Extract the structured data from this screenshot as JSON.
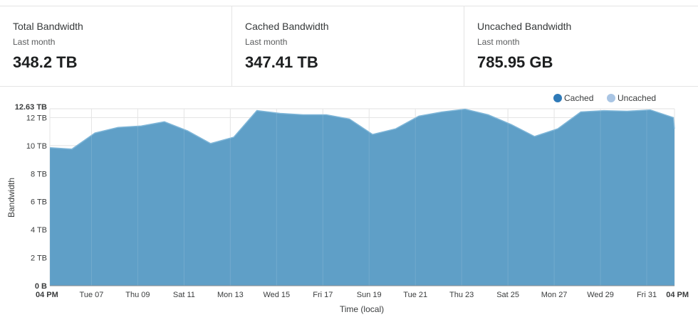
{
  "stats": [
    {
      "title": "Total Bandwidth",
      "period": "Last month",
      "value": "348.2 TB"
    },
    {
      "title": "Cached Bandwidth",
      "period": "Last month",
      "value": "347.41 TB"
    },
    {
      "title": "Uncached Bandwidth",
      "period": "Last month",
      "value": "785.95 GB"
    }
  ],
  "chart_data": {
    "type": "area",
    "xlabel": "Time (local)",
    "ylabel": "Bandwidth",
    "ylim": [
      0,
      12.63
    ],
    "y_unit": "TB",
    "y_ticks": [
      0,
      2,
      4,
      6,
      8,
      10,
      12,
      12.63
    ],
    "y_tick_labels": [
      "0 B",
      "2 TB",
      "4 TB",
      "6 TB",
      "8 TB",
      "10 TB",
      "12 TB",
      "12.63 TB"
    ],
    "x_tick_labels": [
      "04 PM",
      "Tue 07",
      "Thu 09",
      "Sat 11",
      "Mon 13",
      "Wed 15",
      "Fri 17",
      "Sun 19",
      "Tue 21",
      "Thu 23",
      "Sat 25",
      "Mon 27",
      "Wed 29",
      "Fri 31",
      "04 PM"
    ],
    "x_tick_days": [
      0,
      1.8,
      3.8,
      5.8,
      7.8,
      9.8,
      11.8,
      13.8,
      15.8,
      17.8,
      19.8,
      21.8,
      23.8,
      25.8,
      27
    ],
    "x_tick_bold": [
      true,
      false,
      false,
      false,
      false,
      false,
      false,
      false,
      false,
      false,
      false,
      false,
      false,
      false,
      true
    ],
    "x_range": [
      0,
      27
    ],
    "grid": true,
    "legend_position": "top-right",
    "series": [
      {
        "name": "Cached",
        "color": "#2f7ab8",
        "x": [
          0,
          0.95,
          1.95,
          2.95,
          3.95,
          4.95,
          5.95,
          6.95,
          7.95,
          8.95,
          9.95,
          10.95,
          11.95,
          12.95,
          13.95,
          14.95,
          15.95,
          16.95,
          17.95,
          18.95,
          19.95,
          20.95,
          21.95,
          22.95,
          23.95,
          24.95,
          25.95,
          26.95,
          27
        ],
        "values": [
          9.85,
          9.75,
          10.9,
          11.3,
          11.4,
          11.7,
          11.05,
          10.15,
          10.6,
          12.5,
          12.3,
          12.2,
          12.2,
          11.9,
          10.8,
          11.2,
          12.1,
          12.4,
          12.6,
          12.2,
          11.5,
          10.65,
          11.2,
          12.4,
          12.5,
          12.45,
          12.55,
          12.0,
          11.2
        ]
      },
      {
        "name": "Uncached",
        "color": "#a9c5e4",
        "values": []
      }
    ]
  }
}
